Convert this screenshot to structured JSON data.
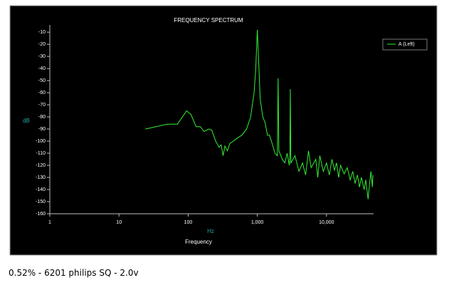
{
  "chart_data": {
    "type": "line",
    "title": "FREQUENCY SPECTRUM",
    "y_label": "dB",
    "x_label": "Hz",
    "x_sublabel": "Frequency",
    "log_x": true,
    "xlim": [
      1,
      48000
    ],
    "ylim": [
      -160,
      -4
    ],
    "xticks": [
      1,
      10,
      100,
      {
        "value": 1000,
        "label": "1,000"
      },
      {
        "value": 10000,
        "label": "10,000"
      }
    ],
    "yticks": [
      -10,
      -20,
      -30,
      -40,
      -50,
      -60,
      -70,
      -80,
      -90,
      -100,
      -110,
      -120,
      -130,
      -140,
      -150,
      -160
    ],
    "x": [
      24,
      50,
      70,
      95,
      110,
      130,
      150,
      170,
      200,
      220,
      250,
      280,
      300,
      320,
      340,
      370,
      400,
      450,
      500,
      600,
      700,
      800,
      900,
      950,
      1000,
      1050,
      1100,
      1200,
      1300,
      1400,
      1500,
      1700,
      1800,
      1950,
      2000,
      2050,
      2300,
      2500,
      2700,
      2900,
      2950,
      3000,
      3050,
      3500,
      4000,
      4500,
      5000,
      5500,
      6000,
      7000,
      7500,
      8000,
      9000,
      10000,
      11000,
      12000,
      13000,
      14000,
      15000,
      16000,
      18000,
      20000,
      22000,
      24000,
      26000,
      28000,
      30000,
      32000,
      35000,
      37000,
      40000,
      42000,
      44000,
      46000,
      47000
    ],
    "series": [
      {
        "name": "A (Left)",
        "color": "#33ee33",
        "values": [
          -90,
          -86,
          -86,
          -75,
          -78,
          -88,
          -88,
          -92,
          -90,
          -91,
          -100,
          -105,
          -103,
          -112,
          -104,
          -108,
          -102,
          -100,
          -98,
          -95,
          -90,
          -80,
          -60,
          -40,
          -8,
          -35,
          -65,
          -80,
          -85,
          -95,
          -95,
          -105,
          -110,
          -112,
          -48,
          -108,
          -115,
          -118,
          -110,
          -120,
          -112,
          -57,
          -118,
          -112,
          -125,
          -118,
          -128,
          -108,
          -122,
          -115,
          -130,
          -112,
          -125,
          -118,
          -128,
          -115,
          -124,
          -118,
          -130,
          -120,
          -127,
          -122,
          -132,
          -125,
          -135,
          -128,
          -138,
          -130,
          -140,
          -132,
          -148,
          -135,
          -125,
          -138,
          -128
        ]
      }
    ]
  },
  "caption": "0.52% - 6201  philips SQ - 2.0v"
}
